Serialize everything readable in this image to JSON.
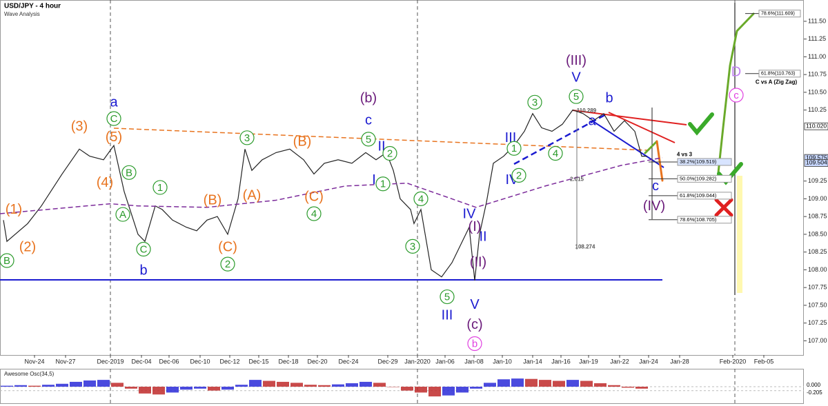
{
  "title": "USD/JPY - 4 hour",
  "subtitle": "Wave Analysis",
  "chart_data": {
    "type": "line",
    "xlim": [
      0,
      233
    ],
    "ylim": [
      106.8,
      111.8
    ],
    "xticks": [
      {
        "value": 10,
        "label": "Nov-24"
      },
      {
        "value": 19,
        "label": "Nov-27"
      },
      {
        "value": 32,
        "label": "Dec-2019"
      },
      {
        "value": 41,
        "label": "Dec-04"
      },
      {
        "value": 49,
        "label": "Dec-06"
      },
      {
        "value": 58,
        "label": "Dec-10"
      },
      {
        "value": 66.6,
        "label": "Dec-12"
      },
      {
        "value": 75,
        "label": "Dec-15"
      },
      {
        "value": 83.6,
        "label": "Dec-18"
      },
      {
        "value": 92,
        "label": "Dec-20"
      },
      {
        "value": 101,
        "label": "Dec-24"
      },
      {
        "value": 112.4,
        "label": "Dec-29"
      },
      {
        "value": 121,
        "label": "Jan-2020"
      },
      {
        "value": 129,
        "label": "Jan-06"
      },
      {
        "value": 137.4,
        "label": "Jan-08"
      },
      {
        "value": 145.6,
        "label": "Jan-10"
      },
      {
        "value": 154.4,
        "label": "Jan-14"
      },
      {
        "value": 162.6,
        "label": "Jan-16"
      },
      {
        "value": 170.6,
        "label": "Jan-19"
      },
      {
        "value": 179.6,
        "label": "Jan-22"
      },
      {
        "value": 188,
        "label": "Jan-24"
      },
      {
        "value": 197,
        "label": "Jan-28"
      },
      {
        "value": 212.4,
        "label": "Feb-2020"
      },
      {
        "value": 221.4,
        "label": "Feb-05"
      }
    ],
    "yticks": [
      {
        "value": 107,
        "label": "107.00"
      },
      107.25,
      {
        "value": 107.5,
        "label": "107.50"
      },
      107.75,
      {
        "value": 108,
        "label": "108.00"
      },
      108.25,
      {
        "value": 108.5,
        "label": "108.50"
      },
      108.75,
      {
        "value": 109,
        "label": "109.00"
      },
      109.25,
      110.25,
      {
        "value": 110.5,
        "label": "110.50"
      },
      110.75,
      {
        "value": 111,
        "label": "111.00"
      },
      111.25,
      {
        "value": 111.5,
        "label": "111.50"
      }
    ],
    "series": [
      {
        "color": "#222222",
        "x": [
          1,
          2,
          8,
          12,
          18,
          23,
          26,
          30,
          33,
          36,
          40,
          42,
          45,
          47,
          50,
          54,
          57,
          60,
          63,
          66,
          69,
          71,
          73,
          76,
          80,
          84,
          88,
          91,
          94,
          98,
          102,
          106,
          109,
          112,
          114,
          116,
          119,
          120,
          122,
          125,
          128,
          131,
          134,
          136,
          137.6,
          139,
          141,
          143,
          146,
          149,
          152,
          154.4,
          157,
          160,
          163,
          166,
          169,
          172,
          175,
          178,
          181,
          184,
          186,
          187.6
        ],
        "values": [
          108.7,
          108.4,
          108.65,
          108.9,
          109.35,
          109.7,
          109.6,
          109.55,
          109.75,
          109.1,
          108.5,
          108.4,
          108.9,
          108.85,
          108.7,
          108.6,
          108.55,
          108.7,
          108.75,
          108.5,
          109.0,
          109.7,
          109.4,
          109.55,
          109.65,
          109.7,
          109.55,
          109.35,
          109.5,
          109.55,
          109.5,
          109.65,
          109.55,
          109.65,
          109.4,
          109.0,
          108.85,
          108.65,
          108.85,
          108.0,
          107.9,
          108.1,
          108.4,
          108.6,
          107.85,
          108.5,
          108.95,
          109.5,
          109.6,
          109.75,
          109.95,
          110.2,
          110.0,
          109.95,
          110.05,
          110.25,
          110.2,
          110.1,
          110.2,
          109.95,
          110.1,
          109.95,
          109.6,
          109.6
        ]
      },
      {
        "color": "#7b2a9a",
        "dashed": true,
        "x": [
          0,
          32,
          40,
          60,
          80,
          100,
          118,
          138,
          158,
          180,
          192
        ],
        "values": [
          108.79,
          108.93,
          108.9,
          108.88,
          108.98,
          109.18,
          109.22,
          108.88,
          109.18,
          109.47,
          109.58
        ]
      }
    ],
    "price_tags": [
      {
        "value": 110.02,
        "label": "110.020"
      },
      {
        "value": 109.575,
        "label": "109.575"
      },
      {
        "value": 109.504,
        "label": "109.504"
      }
    ],
    "fib_levels": [
      {
        "value": 109.519,
        "label": "38.2%(109.519)"
      },
      {
        "value": 109.282,
        "label": "50.0%(109.282)"
      },
      {
        "value": 109.044,
        "label": "61.8%(109.044)"
      },
      {
        "value": 108.705,
        "label": "78.6%(108.705)"
      }
    ],
    "fib_levels_2": [
      {
        "value": 111.609,
        "label": "78.6%(111.609)"
      },
      {
        "value": 110.763,
        "label": "61.8%(110.763)"
      }
    ],
    "annotations": [
      {
        "text": "a",
        "x": 33,
        "y": 110.36,
        "color": "#1a1ad0"
      },
      {
        "text": "C",
        "x": 33,
        "y": 110.13,
        "color": "#2a9a2a",
        "circle": true
      },
      {
        "text": "(5)",
        "x": 33,
        "y": 109.87,
        "color": "#e8731e"
      },
      {
        "text": "(3)",
        "x": 23,
        "y": 110.02,
        "color": "#e8731e"
      },
      {
        "text": "(4)",
        "x": 30.4,
        "y": 109.23,
        "color": "#e8731e"
      },
      {
        "text": "(1)",
        "x": 4,
        "y": 108.85,
        "color": "#e8731e"
      },
      {
        "text": "(2)",
        "x": 8,
        "y": 108.32,
        "color": "#e8731e"
      },
      {
        "text": "B",
        "x": 2,
        "y": 108.13,
        "color": "#2a9a2a",
        "circle": true
      },
      {
        "text": "B",
        "x": 37.4,
        "y": 109.37,
        "color": "#2a9a2a",
        "circle": true
      },
      {
        "text": "A",
        "x": 35.6,
        "y": 108.78,
        "color": "#2a9a2a",
        "circle": true
      },
      {
        "text": "C",
        "x": 41.6,
        "y": 108.29,
        "color": "#2a9a2a",
        "circle": true
      },
      {
        "text": "b",
        "x": 41.6,
        "y": 107.99,
        "color": "#1a1ad0"
      },
      {
        "text": "1",
        "x": 46.4,
        "y": 109.16,
        "color": "#2a9a2a",
        "circle": true
      },
      {
        "text": "3",
        "x": 71.6,
        "y": 109.86,
        "color": "#2a9a2a",
        "circle": true
      },
      {
        "text": "(A)",
        "x": 73,
        "y": 109.05,
        "color": "#e8731e"
      },
      {
        "text": "(B)",
        "x": 61.6,
        "y": 108.98,
        "color": "#e8731e"
      },
      {
        "text": "(C)",
        "x": 66,
        "y": 108.32,
        "color": "#e8731e"
      },
      {
        "text": "2",
        "x": 66,
        "y": 108.08,
        "color": "#2a9a2a",
        "circle": true
      },
      {
        "text": "(B)",
        "x": 87.6,
        "y": 109.81,
        "color": "#e8731e"
      },
      {
        "text": "(C)",
        "x": 91,
        "y": 109.03,
        "color": "#e8731e"
      },
      {
        "text": "4",
        "x": 91,
        "y": 108.79,
        "color": "#2a9a2a",
        "circle": true
      },
      {
        "text": "(b)",
        "x": 106.8,
        "y": 110.42,
        "color": "#6a1a7a"
      },
      {
        "text": "c",
        "x": 106.8,
        "y": 110.11,
        "color": "#1a1ad0"
      },
      {
        "text": "5",
        "x": 106.8,
        "y": 109.84,
        "color": "#2a9a2a",
        "circle": true
      },
      {
        "text": "II",
        "x": 110.6,
        "y": 109.74,
        "color": "#1a1ad0"
      },
      {
        "text": "2",
        "x": 113,
        "y": 109.64,
        "color": "#2a9a2a",
        "circle": true
      },
      {
        "text": "I",
        "x": 108.4,
        "y": 109.27,
        "color": "#1a1ad0"
      },
      {
        "text": "1",
        "x": 111,
        "y": 109.21,
        "color": "#2a9a2a",
        "circle": true
      },
      {
        "text": "4",
        "x": 122,
        "y": 109.0,
        "color": "#2a9a2a",
        "circle": true
      },
      {
        "text": "3",
        "x": 119.6,
        "y": 108.33,
        "color": "#2a9a2a",
        "circle": true
      },
      {
        "text": "5",
        "x": 129.6,
        "y": 107.62,
        "color": "#2a9a2a",
        "circle": true
      },
      {
        "text": "III",
        "x": 129.6,
        "y": 107.36,
        "color": "#1a1ad0"
      },
      {
        "text": "IV",
        "x": 136,
        "y": 108.79,
        "color": "#1a1ad0"
      },
      {
        "text": "(I)",
        "x": 137.6,
        "y": 108.61,
        "color": "#6a1a7a"
      },
      {
        "text": "II",
        "x": 140,
        "y": 108.47,
        "color": "#1a1ad0"
      },
      {
        "text": "(II)",
        "x": 138.6,
        "y": 108.11,
        "color": "#6a1a7a"
      },
      {
        "text": "V",
        "x": 137.6,
        "y": 107.51,
        "color": "#1a1ad0"
      },
      {
        "text": "(c)",
        "x": 137.6,
        "y": 107.23,
        "color": "#6a1a7a"
      },
      {
        "text": "b",
        "x": 137.6,
        "y": 106.96,
        "color": "#e040e0",
        "circle": true
      },
      {
        "text": "III",
        "x": 148,
        "y": 109.86,
        "color": "#1a1ad0"
      },
      {
        "text": "1",
        "x": 149,
        "y": 109.71,
        "color": "#2a9a2a",
        "circle": true
      },
      {
        "text": "IV",
        "x": 148.4,
        "y": 109.27,
        "color": "#1a1ad0"
      },
      {
        "text": "2",
        "x": 150.4,
        "y": 109.33,
        "color": "#2a9a2a",
        "circle": true
      },
      {
        "text": "3",
        "x": 155,
        "y": 110.36,
        "color": "#2a9a2a",
        "circle": true
      },
      {
        "text": "4",
        "x": 161,
        "y": 109.64,
        "color": "#2a9a2a",
        "circle": true
      },
      {
        "text": "(III)",
        "x": 167,
        "y": 110.95,
        "color": "#6a1a7a"
      },
      {
        "text": "V",
        "x": 167,
        "y": 110.71,
        "color": "#1a1ad0"
      },
      {
        "text": "5",
        "x": 167,
        "y": 110.44,
        "color": "#2a9a2a",
        "circle": true
      },
      {
        "text": "b",
        "x": 176.6,
        "y": 110.42,
        "color": "#1a1ad0"
      },
      {
        "text": "a",
        "x": 171.6,
        "y": 110.1,
        "color": "#1a1ad0"
      },
      {
        "text": "c",
        "x": 190,
        "y": 109.18,
        "color": "#1a1ad0"
      },
      {
        "text": "(IV)",
        "x": 189.6,
        "y": 108.9,
        "color": "#6a1a7a"
      },
      {
        "text": "D",
        "x": 213.4,
        "y": 110.79,
        "color": "#c080f0"
      },
      {
        "text": "c",
        "x": 213.4,
        "y": 110.46,
        "color": "#e040e0",
        "circle": true
      },
      {
        "text": "4 vs 3",
        "x": 198.4,
        "y": 109.63,
        "color": "#000000",
        "small": true
      },
      {
        "text": "C vs A (Zig Zag)",
        "x": 225,
        "y": 110.65,
        "color": "#000000",
        "small": true
      },
      {
        "text": "2.015",
        "x": 167.2,
        "y": 109.28,
        "color": "#555555",
        "small": true
      },
      {
        "text": "108.274",
        "x": 169.6,
        "y": 108.33,
        "color": "#555555",
        "small": true
      },
      {
        "text": "110.289",
        "x": 170,
        "y": 110.25,
        "color": "#555555",
        "small": true
      }
    ]
  },
  "oscillator": {
    "type": "bar",
    "title": "Awesome Osc(34,5)",
    "ylim": [
      -0.85,
      0.85
    ],
    "xlim": [
      0,
      233
    ],
    "yticks": [
      {
        "value": 0,
        "label": "0.000"
      },
      {
        "value": -0.205,
        "label": "-0.205"
      }
    ],
    "up_color": "#2a2ad8",
    "down_color": "#c02a2a",
    "x": [
      2,
      6,
      10,
      14,
      18,
      22,
      26,
      30,
      34,
      38,
      42,
      46,
      50,
      54,
      58,
      62,
      66,
      70,
      74,
      78,
      82,
      86,
      90,
      94,
      98,
      102,
      106,
      110,
      114,
      118,
      122,
      126,
      130,
      134,
      138,
      142,
      146,
      150,
      154,
      158,
      162,
      166,
      170,
      174,
      178,
      182,
      186
    ],
    "values": [
      0.05,
      0.08,
      0.05,
      0.1,
      0.15,
      0.25,
      0.32,
      0.35,
      0.2,
      -0.1,
      -0.35,
      -0.4,
      -0.3,
      -0.15,
      -0.1,
      -0.2,
      -0.15,
      0.1,
      0.35,
      0.3,
      0.25,
      0.2,
      0.1,
      0.08,
      0.12,
      0.18,
      0.25,
      0.2,
      0.0,
      -0.2,
      -0.3,
      -0.5,
      -0.45,
      -0.3,
      -0.1,
      0.2,
      0.38,
      0.42,
      0.4,
      0.35,
      0.3,
      0.35,
      0.3,
      0.18,
      0.08,
      -0.05,
      -0.1
    ]
  }
}
